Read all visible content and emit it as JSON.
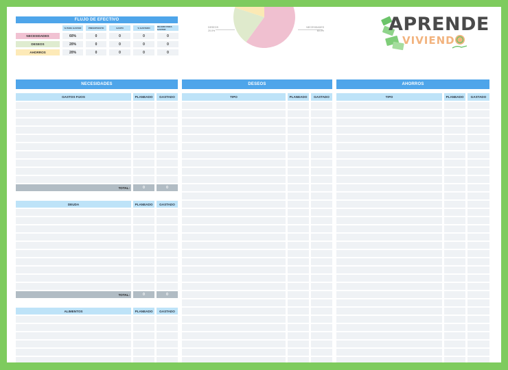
{
  "flujo": {
    "title": "FLUJO DE EFECTIVO",
    "headers": [
      "% PARA GASTAR",
      "PRESUPUESTO",
      "GASTO",
      "% GASTADO",
      "DEJADO PARA GASTAR"
    ],
    "rows": [
      {
        "label": "NECESIDADES",
        "color": "#f1c2d2",
        "values": [
          "60%",
          "0",
          "0",
          "0",
          "0"
        ]
      },
      {
        "label": "DESEOS",
        "color": "#dfecd0",
        "values": [
          "20%",
          "0",
          "0",
          "0",
          "0"
        ]
      },
      {
        "label": "AHORROS",
        "color": "#fdeab8",
        "values": [
          "20%",
          "0",
          "0",
          "0",
          "0"
        ]
      }
    ]
  },
  "chart_data": {
    "type": "pie",
    "title": "",
    "categories": [
      "NECESIDADES",
      "DESEOS",
      "AHORROS"
    ],
    "values": [
      60.0,
      20.0,
      20.0
    ],
    "colors": [
      "#f0c0d0",
      "#dfeacc",
      "#fbe9b4"
    ],
    "labels": [
      {
        "name": "DESEOS",
        "pct": "20.0%"
      },
      {
        "name": "NECESIDADES",
        "pct": "60.0%"
      }
    ],
    "legend": "none"
  },
  "logo": {
    "line1": "APRENDE",
    "line2": "VIVIENDO"
  },
  "sections": {
    "necesidades": {
      "title": "NECESIDADES",
      "tables": [
        {
          "header": "GASTOS FIJOS",
          "col2": "PLANEADO",
          "col3": "GASTADO",
          "total_label": "TOTAL:",
          "total_planeado": "0",
          "total_gastado": "0"
        },
        {
          "header": "DEUDA",
          "col2": "PLANEADO",
          "col3": "GASTADO",
          "total_label": "TOTAL:",
          "total_planeado": "0",
          "total_gastado": "0"
        },
        {
          "header": "ALIMENTOS",
          "col2": "PLANEADO",
          "col3": "GASTADO"
        }
      ]
    },
    "deseos": {
      "title": "DESEOS",
      "header": "TIPO",
      "col2": "PLANEADO",
      "col3": "GASTADO"
    },
    "ahorros": {
      "title": "AHORROS",
      "header": "TIPO",
      "col2": "PLANEADO",
      "col3": "GASTADO"
    }
  },
  "colors": {
    "border_green": "#7ecb5e",
    "header_blue": "#4ea5ea",
    "light_blue": "#bee3f8",
    "cell_gray": "#eff2f5",
    "total_gray": "#b1bcc4"
  }
}
